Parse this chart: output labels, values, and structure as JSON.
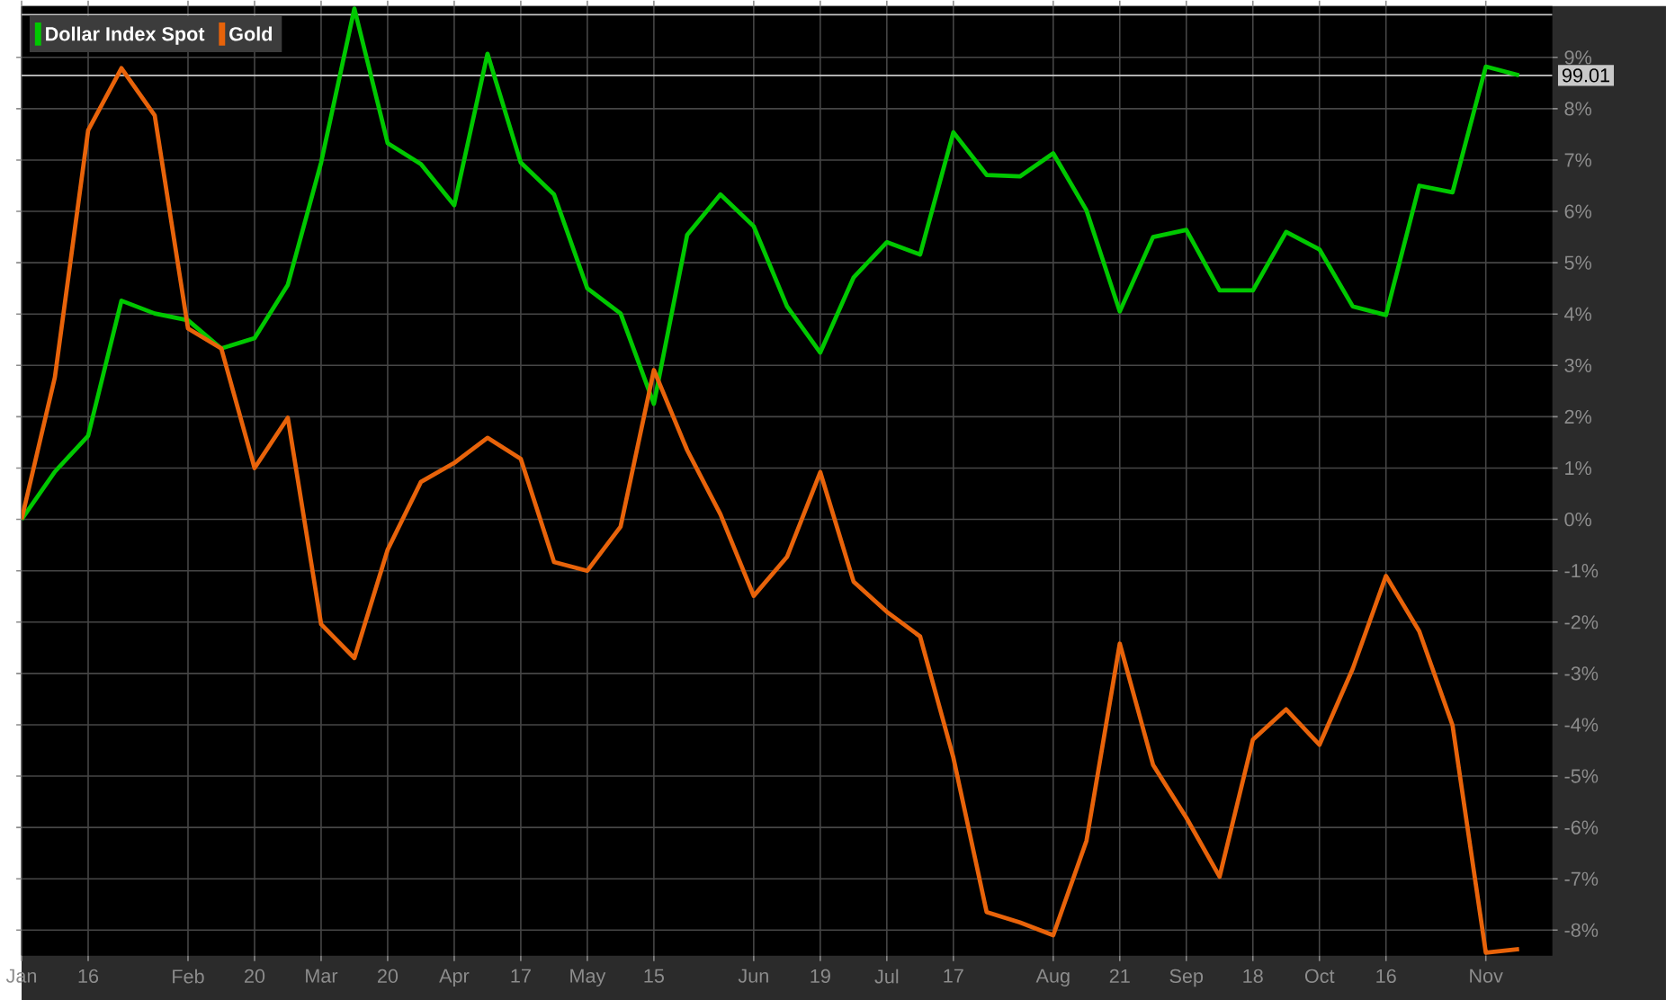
{
  "chart_data": {
    "type": "line",
    "categories": [
      "Jan",
      null,
      "16",
      null,
      null,
      "Feb",
      null,
      "20",
      null,
      "Mar",
      null,
      "20",
      null,
      "Apr",
      null,
      "17",
      null,
      "May",
      null,
      "15",
      null,
      null,
      "Jun",
      null,
      "19",
      null,
      "Jul",
      null,
      "17",
      null,
      null,
      "Aug",
      null,
      "21",
      null,
      "Sep",
      null,
      "18",
      null,
      "Oct",
      null,
      "16",
      null,
      null,
      "Nov",
      null
    ],
    "series": [
      {
        "name": "Dollar Index Spot",
        "color": "#00c800",
        "values": [
          0,
          0.93,
          1.63,
          4.26,
          4.01,
          3.88,
          3.33,
          3.53,
          4.57,
          6.95,
          9.95,
          7.33,
          6.92,
          6.12,
          9.07,
          6.95,
          6.33,
          4.5,
          4.01,
          2.25,
          5.54,
          6.33,
          5.71,
          4.15,
          3.25,
          4.71,
          5.4,
          5.16,
          7.54,
          6.71,
          6.68,
          7.13,
          6.02,
          4.05,
          5.5,
          5.64,
          4.46,
          4.46,
          5.6,
          5.26,
          4.15,
          3.98,
          6.5,
          6.37,
          8.82,
          8.65
        ]
      },
      {
        "name": "Gold",
        "color": "#e8630a",
        "values": [
          0,
          2.77,
          7.58,
          8.79,
          7.87,
          3.72,
          3.33,
          1.0,
          1.98,
          -2.04,
          -2.7,
          -0.59,
          0.73,
          1.1,
          1.59,
          1.18,
          -0.83,
          -1.0,
          -0.14,
          2.91,
          1.35,
          0.1,
          -1.49,
          -0.73,
          0.92,
          -1.21,
          -1.8,
          -2.28,
          -4.64,
          -7.65,
          -7.85,
          -8.1,
          -6.26,
          -2.42,
          -4.78,
          -5.81,
          -6.96,
          -4.29,
          -3.7,
          -4.39,
          -2.91,
          -1.1,
          -2.18,
          -4.01,
          -8.44,
          -8.37
        ]
      }
    ],
    "ylim": [
      -8.5,
      10
    ],
    "yticks": [
      {
        "value": -8,
        "label": "-8%"
      },
      {
        "value": -7,
        "label": "-7%"
      },
      {
        "value": -6,
        "label": "-6%"
      },
      {
        "value": -5,
        "label": "-5%"
      },
      {
        "value": -4,
        "label": "-4%"
      },
      {
        "value": -3,
        "label": "-3%"
      },
      {
        "value": -2,
        "label": "-2%"
      },
      {
        "value": -1,
        "label": "-1%"
      },
      {
        "value": 0,
        "label": "0%"
      },
      {
        "value": 1,
        "label": "1%"
      },
      {
        "value": 2,
        "label": "2%"
      },
      {
        "value": 3,
        "label": "3%"
      },
      {
        "value": 4,
        "label": "4%"
      },
      {
        "value": 5,
        "label": "5%"
      },
      {
        "value": 6,
        "label": "6%"
      },
      {
        "value": 7,
        "label": "7%"
      },
      {
        "value": 8,
        "label": "8%"
      },
      {
        "value": 9,
        "label": "9%"
      }
    ],
    "ref_lines": [
      {
        "axis": "y",
        "value": 8.65,
        "color": "#c8c8c8"
      },
      {
        "axis": "y",
        "value": 9.83,
        "color": "#c8c8c8"
      }
    ],
    "annotations": [
      "99.01"
    ],
    "grid": true,
    "legend": "top left"
  }
}
